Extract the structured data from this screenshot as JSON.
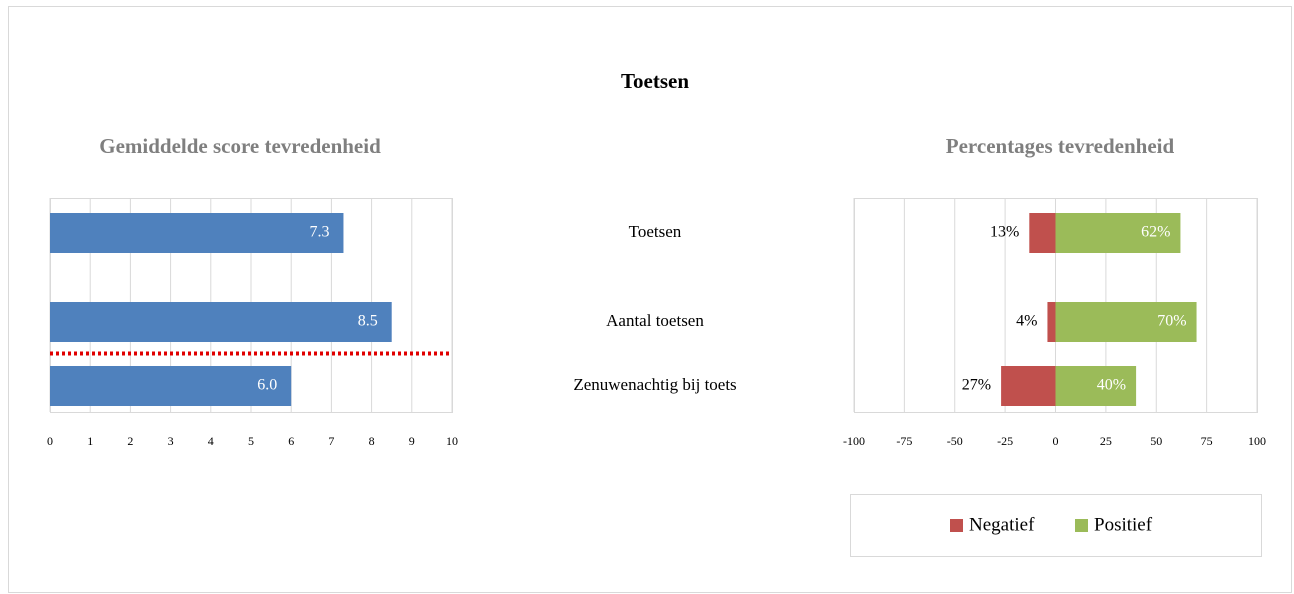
{
  "title": "Toetsen",
  "chart_data": [
    {
      "type": "bar",
      "orientation": "horizontal",
      "title": "Gemiddelde score tevredenheid",
      "categories": [
        "Toetsen",
        "Aantal toetsen",
        "Zenuwenachtig bij toets"
      ],
      "values": [
        7.3,
        8.5,
        6.0
      ],
      "value_labels": [
        "7.3",
        "8.5",
        "6.0"
      ],
      "color": "#4f81bd",
      "xlim": [
        0,
        10
      ],
      "xticks": [
        0,
        1,
        2,
        3,
        4,
        5,
        6,
        7,
        8,
        9,
        10
      ],
      "grid": true
    },
    {
      "type": "stacked_bar",
      "orientation": "horizontal",
      "title": "Percentages tevredenheid",
      "series": [
        {
          "name": "Negatief",
          "color": "#c0504d",
          "values": [
            -13,
            -4,
            -27
          ],
          "value_labels": [
            "13%",
            "4%",
            "27%"
          ]
        },
        {
          "name": "Positief",
          "color": "#9bbb59",
          "values": [
            62,
            70,
            40
          ],
          "value_labels": [
            "62%",
            "70%",
            "40%"
          ]
        }
      ],
      "xlim": [
        -100,
        100
      ],
      "xticks": [
        -100,
        -75,
        -50,
        -25,
        0,
        25,
        50,
        75,
        100
      ],
      "grid": true,
      "legend": "bottom"
    }
  ]
}
